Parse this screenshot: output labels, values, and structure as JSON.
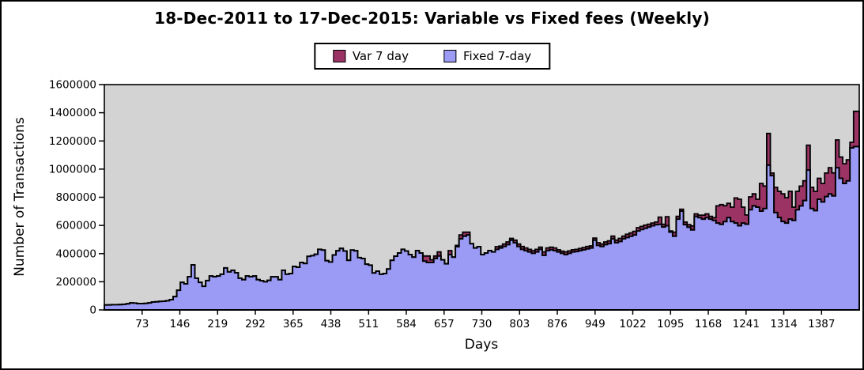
{
  "legend": {
    "var_label": "Var 7 day",
    "fixed_label": "Fixed 7-day"
  },
  "colors": {
    "var": "#9b3465",
    "fixed": "#9b9bf5",
    "plot_bg": "#d3d3d3",
    "outline": "#000000"
  },
  "chart_data": {
    "type": "area",
    "title": "18-Dec-2011 to 17-Dec-2015: Variable vs Fixed fees (Weekly)",
    "xlabel": "Days",
    "ylabel": "Number of Transactions",
    "xlim": [
      0,
      1460
    ],
    "ylim": [
      0,
      1600000
    ],
    "x_ticks": [
      73,
      146,
      219,
      292,
      365,
      438,
      511,
      584,
      657,
      730,
      803,
      876,
      949,
      1022,
      1095,
      1168,
      1241,
      1314,
      1387
    ],
    "y_ticks": [
      0,
      200000,
      400000,
      600000,
      800000,
      1000000,
      1200000,
      1400000,
      1600000
    ],
    "grid": false,
    "legend_position": "top-center",
    "interval_days": 7,
    "series": [
      {
        "name": "Var 7 day",
        "color": "#9b3465",
        "values": [
          null,
          null,
          null,
          null,
          null,
          null,
          null,
          null,
          null,
          null,
          null,
          null,
          null,
          null,
          null,
          null,
          null,
          null,
          null,
          null,
          null,
          null,
          null,
          null,
          null,
          null,
          null,
          null,
          null,
          null,
          null,
          null,
          null,
          null,
          null,
          null,
          null,
          null,
          null,
          null,
          null,
          null,
          null,
          null,
          null,
          null,
          null,
          null,
          null,
          null,
          null,
          null,
          null,
          null,
          null,
          null,
          null,
          null,
          null,
          null,
          null,
          null,
          null,
          null,
          null,
          null,
          null,
          null,
          null,
          null,
          null,
          null,
          null,
          null,
          null,
          null,
          null,
          null,
          null,
          null,
          null,
          null,
          null,
          null,
          null,
          null,
          null,
          null,
          383000,
          383000,
          356000,
          383000,
          412000,
          null,
          null,
          421000,
          null,
          458000,
          533000,
          552000,
          552000,
          null,
          null,
          null,
          null,
          null,
          null,
          null,
          449000,
          453000,
          468000,
          483000,
          508000,
          495000,
          468000,
          450000,
          440000,
          430000,
          421000,
          430000,
          445000,
          412000,
          440000,
          445000,
          440000,
          427000,
          417000,
          412000,
          419000,
          427000,
          430000,
          436000,
          443000,
          450000,
          455000,
          510000,
          477000,
          468000,
          483000,
          490000,
          524000,
          495000,
          508000,
          524000,
          537000,
          546000,
          558000,
          584000,
          593000,
          602000,
          608000,
          617000,
          624000,
          659000,
          608000,
          662000,
          561000,
          552000,
          664000,
          715000,
          624000,
          606000,
          596000,
          682000,
          673000,
          673000,
          682000,
          664000,
          655000,
          739000,
          748000,
          740000,
          757000,
          730000,
          795000,
          786000,
          730000,
          674000,
          803000,
          824000,
          786000,
          898000,
          880000,
          1253000,
          972000,
          870000,
          842000,
          824000,
          797000,
          842000,
          730000,
          842000,
          879000,
          917000,
          1170000,
          870000,
          842000,
          935000,
          898000,
          972000,
          1010000,
          973000,
          1207000,
          1085000,
          1038000,
          1066000,
          1190000,
          1410000
        ]
      },
      {
        "name": "Fixed 7-day",
        "color": "#9b9bf5",
        "values": [
          35000,
          36000,
          37000,
          37000,
          38000,
          40000,
          44000,
          50000,
          48000,
          45000,
          45000,
          46000,
          50000,
          56000,
          58000,
          60000,
          62000,
          65000,
          73000,
          95000,
          140000,
          196000,
          185000,
          236000,
          320000,
          225000,
          196000,
          168000,
          208000,
          241000,
          236000,
          241000,
          253000,
          298000,
          270000,
          281000,
          264000,
          225000,
          215000,
          241000,
          236000,
          241000,
          215000,
          207000,
          200000,
          210000,
          235000,
          235000,
          215000,
          281000,
          253000,
          258000,
          309000,
          303000,
          337000,
          330000,
          380000,
          385000,
          395000,
          430000,
          425000,
          350000,
          340000,
          390000,
          420000,
          437000,
          418000,
          352000,
          425000,
          420000,
          371000,
          365000,
          325000,
          318000,
          262000,
          275000,
          253000,
          258000,
          290000,
          352000,
          382000,
          404000,
          430000,
          418000,
          393000,
          375000,
          421000,
          404000,
          347000,
          337000,
          337000,
          365000,
          383000,
          356000,
          328000,
          393000,
          375000,
          449000,
          505000,
          524000,
          533000,
          470000,
          440000,
          449000,
          393000,
          404000,
          421000,
          412000,
          430000,
          440000,
          450000,
          464000,
          495000,
          477000,
          450000,
          430000,
          421000,
          412000,
          402000,
          412000,
          430000,
          388000,
          421000,
          427000,
          421000,
          412000,
          402000,
          393000,
          402000,
          412000,
          415000,
          421000,
          427000,
          434000,
          440000,
          495000,
          458000,
          450000,
          464000,
          471000,
          505000,
          477000,
          486000,
          505000,
          514000,
          524000,
          533000,
          561000,
          571000,
          580000,
          589000,
          598000,
          606000,
          608000,
          589000,
          598000,
          553000,
          524000,
          645000,
          702000,
          606000,
          587000,
          568000,
          664000,
          655000,
          645000,
          655000,
          645000,
          636000,
          617000,
          608000,
          627000,
          655000,
          627000,
          617000,
          598000,
          617000,
          609000,
          712000,
          739000,
          730000,
          702000,
          720000,
          1028000,
          954000,
          691000,
          656000,
          628000,
          617000,
          645000,
          636000,
          712000,
          739000,
          777000,
          993000,
          720000,
          705000,
          786000,
          767000,
          805000,
          824000,
          810000,
          1010000,
          935000,
          898000,
          917000,
          1151000,
          1160000
        ]
      }
    ]
  }
}
